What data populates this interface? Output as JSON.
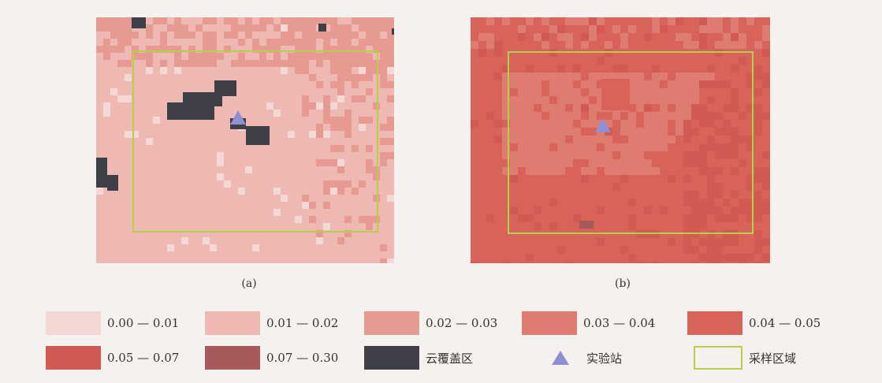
{
  "panels": [
    {
      "id": "a",
      "caption": "(a)"
    },
    {
      "id": "b",
      "caption": "(b)"
    }
  ],
  "legend": [
    {
      "label": "0.00 — 0.01",
      "color": "#f3d8d5",
      "kind": "swatch"
    },
    {
      "label": "0.01 — 0.02",
      "color": "#eeb9b3",
      "kind": "swatch"
    },
    {
      "label": "0.02 — 0.03",
      "color": "#e69a91",
      "kind": "swatch"
    },
    {
      "label": "0.03 — 0.04",
      "color": "#df7c72",
      "kind": "swatch"
    },
    {
      "label": "0.04 — 0.05",
      "color": "#d86459",
      "kind": "swatch"
    },
    {
      "label": "0.05 — 0.07",
      "color": "#d15a52",
      "kind": "swatch"
    },
    {
      "label": "0.07 — 0.30",
      "color": "#a65a5c",
      "kind": "swatch"
    },
    {
      "label": "云覆盖区",
      "color": "#3f3f48",
      "kind": "swatch"
    },
    {
      "label": "实验站",
      "color": "#8f8fd6",
      "kind": "triangle"
    },
    {
      "label": "采样区域",
      "color": "#b5cf4a",
      "kind": "box"
    }
  ],
  "colors": {
    "sampling_area": "#b5cf4a",
    "station": "#8f8fd6",
    "cloud": "#3f3f48"
  }
}
